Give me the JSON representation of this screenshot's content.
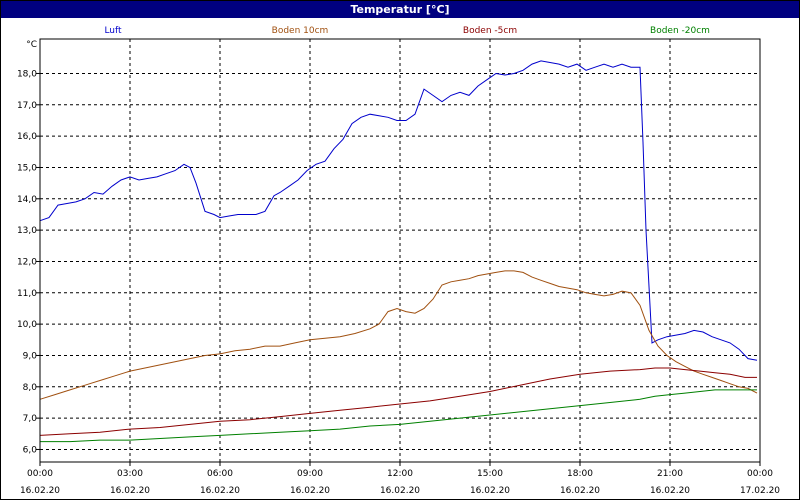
{
  "chart_data": {
    "type": "line",
    "title": "Temperatur [°C]",
    "ylabel": "°C",
    "xlabel": "",
    "ylim": [
      5.6,
      19.1
    ],
    "xlim": [
      0,
      24
    ],
    "grid": true,
    "legend": "top",
    "y_ticks": [
      "6,0",
      "7,0",
      "8,0",
      "9,0",
      "10,0",
      "11,0",
      "12,0",
      "13,0",
      "14,0",
      "15,0",
      "16,0",
      "17,0",
      "18,0"
    ],
    "x_ticks": [
      {
        "time": "00:00",
        "date": "16.02.20"
      },
      {
        "time": "03:00",
        "date": "16.02.20"
      },
      {
        "time": "06:00",
        "date": "16.02.20"
      },
      {
        "time": "09:00",
        "date": "16.02.20"
      },
      {
        "time": "12:00",
        "date": "16.02.20"
      },
      {
        "time": "15:00",
        "date": "16.02.20"
      },
      {
        "time": "18:00",
        "date": "16.02.20"
      },
      {
        "time": "21:00",
        "date": "16.02.20"
      },
      {
        "time": "00:00",
        "date": "17.02.20"
      }
    ],
    "series": [
      {
        "name": "Luft",
        "color": "#0000cc",
        "x": [
          0,
          0.3,
          0.6,
          0.9,
          1.2,
          1.5,
          1.8,
          2.1,
          2.4,
          2.7,
          3.0,
          3.3,
          3.6,
          3.9,
          4.2,
          4.5,
          4.8,
          5.0,
          5.2,
          5.5,
          5.8,
          6.0,
          6.3,
          6.6,
          6.9,
          7.2,
          7.5,
          7.8,
          8.0,
          8.3,
          8.6,
          8.9,
          9.2,
          9.5,
          9.8,
          10.1,
          10.4,
          10.7,
          11.0,
          11.3,
          11.6,
          11.9,
          12.2,
          12.5,
          12.8,
          13.1,
          13.4,
          13.7,
          14.0,
          14.3,
          14.6,
          14.9,
          15.2,
          15.5,
          15.8,
          16.1,
          16.4,
          16.7,
          17.0,
          17.3,
          17.6,
          17.9,
          18.2,
          18.5,
          18.8,
          19.1,
          19.4,
          19.7,
          20.0,
          20.1,
          20.2,
          20.4,
          20.6,
          20.9,
          21.2,
          21.5,
          21.8,
          22.1,
          22.4,
          22.7,
          23.0,
          23.3,
          23.6,
          23.9
        ],
        "y": [
          13.3,
          13.4,
          13.8,
          13.85,
          13.9,
          14.0,
          14.2,
          14.15,
          14.4,
          14.6,
          14.7,
          14.6,
          14.65,
          14.7,
          14.8,
          14.9,
          15.1,
          15.0,
          14.5,
          13.6,
          13.5,
          13.4,
          13.45,
          13.5,
          13.5,
          13.5,
          13.6,
          14.1,
          14.2,
          14.4,
          14.6,
          14.9,
          15.1,
          15.2,
          15.6,
          15.9,
          16.4,
          16.6,
          16.7,
          16.65,
          16.6,
          16.5,
          16.5,
          16.7,
          17.5,
          17.3,
          17.1,
          17.3,
          17.4,
          17.3,
          17.6,
          17.8,
          18.0,
          17.95,
          18.0,
          18.1,
          18.3,
          18.4,
          18.35,
          18.3,
          18.2,
          18.3,
          18.1,
          18.2,
          18.3,
          18.2,
          18.3,
          18.2,
          18.2,
          15.8,
          13.0,
          9.4,
          9.5,
          9.6,
          9.65,
          9.7,
          9.8,
          9.75,
          9.6,
          9.5,
          9.4,
          9.2,
          8.9,
          8.85
        ]
      },
      {
        "name": "Boden 10cm",
        "color": "#a05010",
        "x": [
          0,
          0.5,
          1.0,
          1.5,
          2.0,
          2.5,
          3.0,
          3.5,
          4.0,
          4.5,
          5.0,
          5.5,
          6.0,
          6.5,
          7.0,
          7.5,
          8.0,
          8.5,
          9.0,
          9.5,
          10.0,
          10.5,
          11.0,
          11.3,
          11.6,
          11.9,
          12.2,
          12.5,
          12.8,
          13.1,
          13.4,
          13.7,
          14.0,
          14.3,
          14.6,
          14.9,
          15.2,
          15.5,
          15.8,
          16.1,
          16.4,
          16.7,
          17.0,
          17.3,
          17.6,
          17.9,
          18.2,
          18.5,
          18.8,
          19.1,
          19.4,
          19.7,
          20.0,
          20.3,
          20.6,
          20.9,
          21.2,
          21.5,
          21.8,
          22.1,
          22.4,
          22.7,
          23.0,
          23.3,
          23.6,
          23.9
        ],
        "y": [
          7.6,
          7.75,
          7.9,
          8.05,
          8.2,
          8.35,
          8.5,
          8.6,
          8.7,
          8.8,
          8.9,
          9.0,
          9.05,
          9.15,
          9.2,
          9.3,
          9.3,
          9.4,
          9.5,
          9.55,
          9.6,
          9.7,
          9.85,
          10.0,
          10.4,
          10.5,
          10.4,
          10.35,
          10.5,
          10.8,
          11.25,
          11.35,
          11.4,
          11.45,
          11.55,
          11.6,
          11.65,
          11.7,
          11.7,
          11.65,
          11.5,
          11.4,
          11.3,
          11.2,
          11.15,
          11.1,
          11.0,
          10.95,
          10.9,
          10.95,
          11.05,
          11.0,
          10.6,
          9.8,
          9.3,
          9.0,
          8.8,
          8.65,
          8.5,
          8.4,
          8.3,
          8.2,
          8.1,
          8.0,
          7.95,
          7.8
        ]
      },
      {
        "name": "Boden -5cm",
        "color": "#8b0000",
        "x": [
          0,
          1.0,
          2.0,
          3.0,
          4.0,
          5.0,
          6.0,
          7.0,
          8.0,
          9.0,
          10.0,
          11.0,
          12.0,
          13.0,
          14.0,
          15.0,
          16.0,
          17.0,
          18.0,
          19.0,
          20.0,
          20.5,
          21.0,
          21.5,
          22.0,
          22.5,
          23.0,
          23.5,
          23.9
        ],
        "y": [
          6.45,
          6.5,
          6.55,
          6.65,
          6.7,
          6.8,
          6.9,
          6.95,
          7.05,
          7.15,
          7.25,
          7.35,
          7.45,
          7.55,
          7.7,
          7.85,
          8.05,
          8.25,
          8.4,
          8.5,
          8.55,
          8.6,
          8.6,
          8.55,
          8.5,
          8.45,
          8.4,
          8.3,
          8.3
        ]
      },
      {
        "name": "Boden -20cm",
        "color": "#008000",
        "x": [
          0,
          1.0,
          2.0,
          3.0,
          4.0,
          5.0,
          6.0,
          7.0,
          8.0,
          9.0,
          10.0,
          11.0,
          12.0,
          13.0,
          14.0,
          15.0,
          16.0,
          17.0,
          18.0,
          19.0,
          20.0,
          20.5,
          21.0,
          21.5,
          22.0,
          22.5,
          23.0,
          23.5,
          23.9
        ],
        "y": [
          6.25,
          6.25,
          6.3,
          6.3,
          6.35,
          6.4,
          6.45,
          6.5,
          6.55,
          6.6,
          6.65,
          6.75,
          6.8,
          6.9,
          7.0,
          7.1,
          7.2,
          7.3,
          7.4,
          7.5,
          7.6,
          7.7,
          7.75,
          7.8,
          7.85,
          7.9,
          7.9,
          7.9,
          7.9
        ]
      }
    ]
  }
}
